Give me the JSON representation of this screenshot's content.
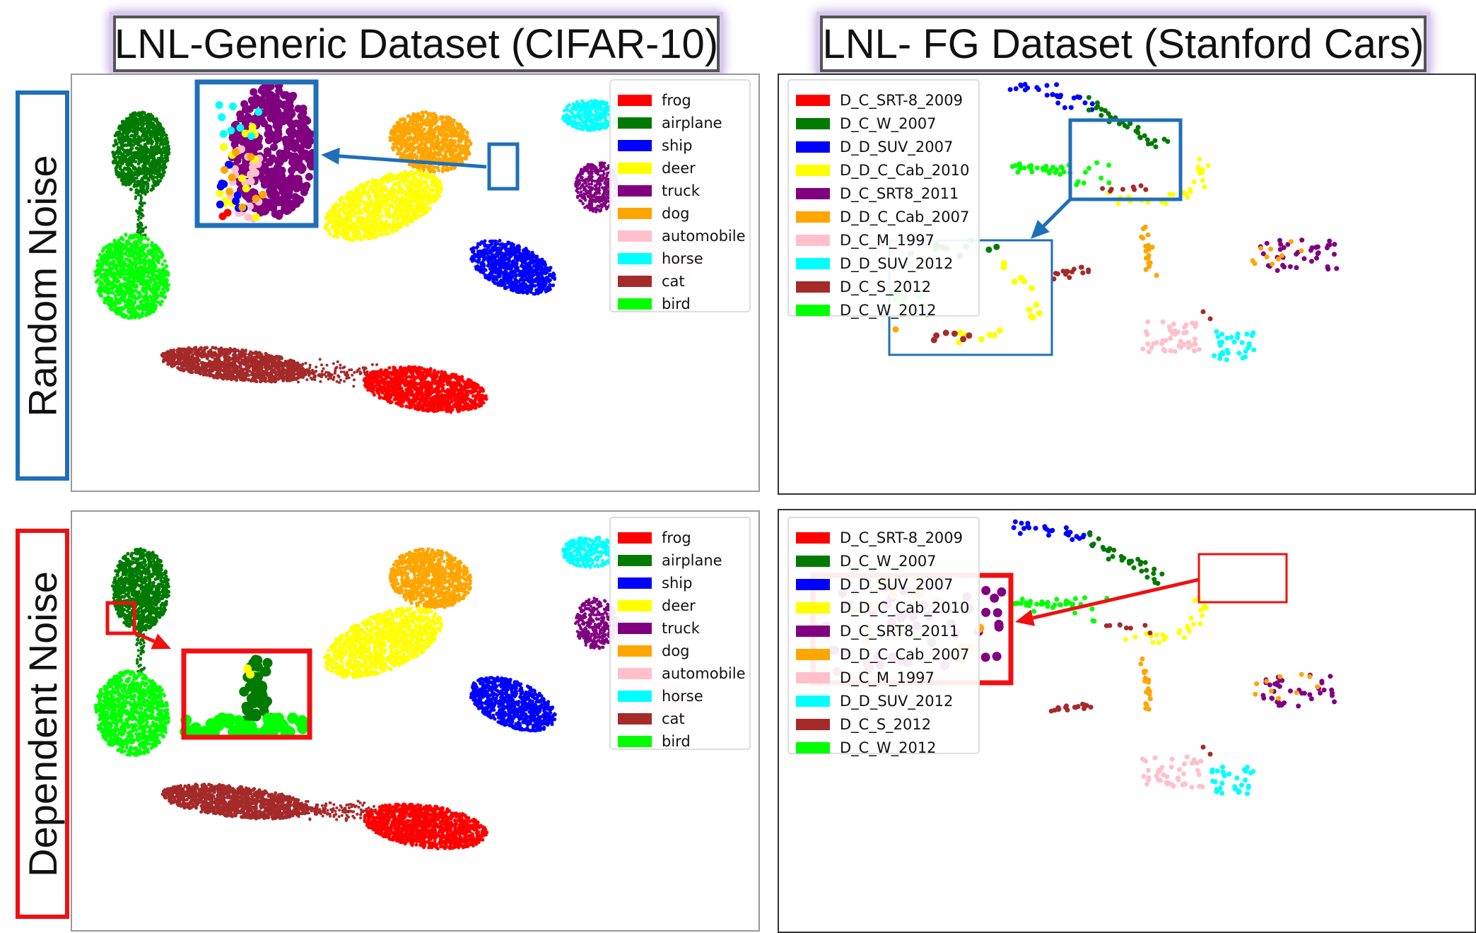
{
  "titles": {
    "left": "LNL-Generic Dataset (CIFAR-10)",
    "right": "LNL- FG Dataset (Stanford Cars)"
  },
  "row_labels": {
    "top": "Random Noise",
    "bottom": "Dependent Noise"
  },
  "colors": {
    "random_noise_accent": "#1f6fb8",
    "dependent_noise_accent": "#ee1111"
  },
  "chart_data": [
    {
      "type": "scatter",
      "panel": "cifar-random-noise",
      "legend_placement": "top-right",
      "legend": [
        {
          "name": "frog",
          "color": "#ff0000"
        },
        {
          "name": "airplane",
          "color": "#007a00"
        },
        {
          "name": "ship",
          "color": "#0000ff"
        },
        {
          "name": "deer",
          "color": "#ffff00"
        },
        {
          "name": "truck",
          "color": "#800080"
        },
        {
          "name": "dog",
          "color": "#ffa500"
        },
        {
          "name": "automobile",
          "color": "#ffc0cb"
        },
        {
          "name": "horse",
          "color": "#00ffff"
        },
        {
          "name": "cat",
          "color": "#a52a2a"
        },
        {
          "name": "bird",
          "color": "#00ff00"
        }
      ]
    },
    {
      "type": "scatter",
      "panel": "stanford-cars-random-noise",
      "legend_placement": "top-left",
      "legend": [
        {
          "name": "D_C_SRT-8_2009",
          "color": "#ff0000"
        },
        {
          "name": "D_C_W_2007",
          "color": "#007a00"
        },
        {
          "name": "D_D_SUV_2007",
          "color": "#0000ff"
        },
        {
          "name": "D_D_C_Cab_2010",
          "color": "#ffff00"
        },
        {
          "name": "D_C_SRT8_2011",
          "color": "#800080"
        },
        {
          "name": "D_D_C_Cab_2007",
          "color": "#ffa500"
        },
        {
          "name": "D_C_M_1997",
          "color": "#ffc0cb"
        },
        {
          "name": "D_D_SUV_2012",
          "color": "#00ffff"
        },
        {
          "name": "D_C_S_2012",
          "color": "#a52a2a"
        },
        {
          "name": "D_C_W_2012",
          "color": "#00ff00"
        }
      ]
    },
    {
      "type": "scatter",
      "panel": "cifar-dependent-noise",
      "legend_placement": "top-right",
      "legend": [
        {
          "name": "frog",
          "color": "#ff0000"
        },
        {
          "name": "airplane",
          "color": "#007a00"
        },
        {
          "name": "ship",
          "color": "#0000ff"
        },
        {
          "name": "deer",
          "color": "#ffff00"
        },
        {
          "name": "truck",
          "color": "#800080"
        },
        {
          "name": "dog",
          "color": "#ffa500"
        },
        {
          "name": "automobile",
          "color": "#ffc0cb"
        },
        {
          "name": "horse",
          "color": "#00ffff"
        },
        {
          "name": "cat",
          "color": "#a52a2a"
        },
        {
          "name": "bird",
          "color": "#00ff00"
        }
      ]
    },
    {
      "type": "scatter",
      "panel": "stanford-cars-dependent-noise",
      "legend_placement": "top-left",
      "legend": [
        {
          "name": "D_C_SRT-8_2009",
          "color": "#ff0000"
        },
        {
          "name": "D_C_W_2007",
          "color": "#007a00"
        },
        {
          "name": "D_D_SUV_2007",
          "color": "#0000ff"
        },
        {
          "name": "D_D_C_Cab_2010",
          "color": "#ffff00"
        },
        {
          "name": "D_C_SRT8_2011",
          "color": "#800080"
        },
        {
          "name": "D_D_C_Cab_2007",
          "color": "#ffa500"
        },
        {
          "name": "D_C_M_1997",
          "color": "#ffc0cb"
        },
        {
          "name": "D_D_SUV_2012",
          "color": "#00ffff"
        },
        {
          "name": "D_C_S_2012",
          "color": "#a52a2a"
        },
        {
          "name": "D_C_W_2012",
          "color": "#00ff00"
        }
      ]
    }
  ]
}
